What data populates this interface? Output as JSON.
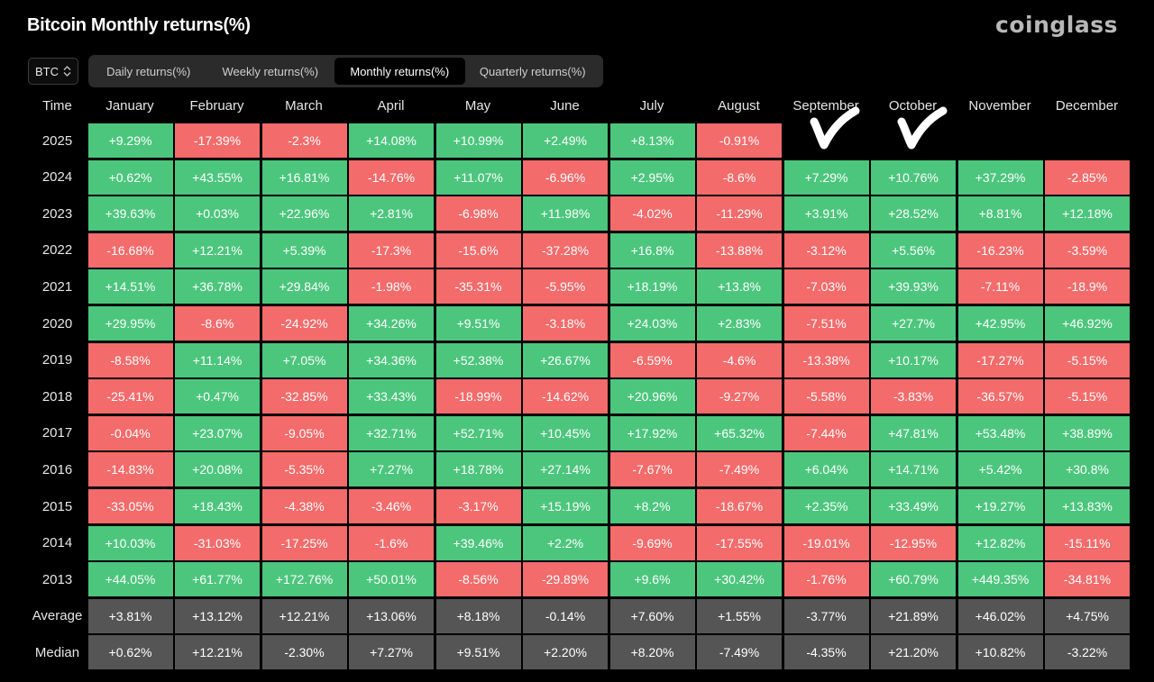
{
  "title": "Bitcoin Monthly returns(%)",
  "logo": "coinglass",
  "asset_select": {
    "value": "BTC"
  },
  "tabs": [
    {
      "label": "Daily returns(%)",
      "active": false
    },
    {
      "label": "Weekly returns(%)",
      "active": false
    },
    {
      "label": "Monthly returns(%)",
      "active": true
    },
    {
      "label": "Quarterly returns(%)",
      "active": false
    }
  ],
  "colors": {
    "positive": "#4cc67d",
    "negative": "#f36b6b",
    "stat": "#555555"
  },
  "chart_data": {
    "type": "table",
    "corner_label": "Time",
    "columns": [
      "January",
      "February",
      "March",
      "April",
      "May",
      "June",
      "July",
      "August",
      "September",
      "October",
      "November",
      "December"
    ],
    "rows": [
      {
        "label": "2025",
        "values": [
          "+9.29%",
          "-17.39%",
          "-2.3%",
          "+14.08%",
          "+10.99%",
          "+2.49%",
          "+8.13%",
          "-0.91%",
          null,
          null,
          null,
          null
        ]
      },
      {
        "label": "2024",
        "values": [
          "+0.62%",
          "+43.55%",
          "+16.81%",
          "-14.76%",
          "+11.07%",
          "-6.96%",
          "+2.95%",
          "-8.6%",
          "+7.29%",
          "+10.76%",
          "+37.29%",
          "-2.85%"
        ]
      },
      {
        "label": "2023",
        "values": [
          "+39.63%",
          "+0.03%",
          "+22.96%",
          "+2.81%",
          "-6.98%",
          "+11.98%",
          "-4.02%",
          "-11.29%",
          "+3.91%",
          "+28.52%",
          "+8.81%",
          "+12.18%"
        ]
      },
      {
        "label": "2022",
        "values": [
          "-16.68%",
          "+12.21%",
          "+5.39%",
          "-17.3%",
          "-15.6%",
          "-37.28%",
          "+16.8%",
          "-13.88%",
          "-3.12%",
          "+5.56%",
          "-16.23%",
          "-3.59%"
        ]
      },
      {
        "label": "2021",
        "values": [
          "+14.51%",
          "+36.78%",
          "+29.84%",
          "-1.98%",
          "-35.31%",
          "-5.95%",
          "+18.19%",
          "+13.8%",
          "-7.03%",
          "+39.93%",
          "-7.11%",
          "-18.9%"
        ]
      },
      {
        "label": "2020",
        "values": [
          "+29.95%",
          "-8.6%",
          "-24.92%",
          "+34.26%",
          "+9.51%",
          "-3.18%",
          "+24.03%",
          "+2.83%",
          "-7.51%",
          "+27.7%",
          "+42.95%",
          "+46.92%"
        ]
      },
      {
        "label": "2019",
        "values": [
          "-8.58%",
          "+11.14%",
          "+7.05%",
          "+34.36%",
          "+52.38%",
          "+26.67%",
          "-6.59%",
          "-4.6%",
          "-13.38%",
          "+10.17%",
          "-17.27%",
          "-5.15%"
        ]
      },
      {
        "label": "2018",
        "values": [
          "-25.41%",
          "+0.47%",
          "-32.85%",
          "+33.43%",
          "-18.99%",
          "-14.62%",
          "+20.96%",
          "-9.27%",
          "-5.58%",
          "-3.83%",
          "-36.57%",
          "-5.15%"
        ]
      },
      {
        "label": "2017",
        "values": [
          "-0.04%",
          "+23.07%",
          "-9.05%",
          "+32.71%",
          "+52.71%",
          "+10.45%",
          "+17.92%",
          "+65.32%",
          "-7.44%",
          "+47.81%",
          "+53.48%",
          "+38.89%"
        ]
      },
      {
        "label": "2016",
        "values": [
          "-14.83%",
          "+20.08%",
          "-5.35%",
          "+7.27%",
          "+18.78%",
          "+27.14%",
          "-7.67%",
          "-7.49%",
          "+6.04%",
          "+14.71%",
          "+5.42%",
          "+30.8%"
        ]
      },
      {
        "label": "2015",
        "values": [
          "-33.05%",
          "+18.43%",
          "-4.38%",
          "-3.46%",
          "-3.17%",
          "+15.19%",
          "+8.2%",
          "-18.67%",
          "+2.35%",
          "+33.49%",
          "+19.27%",
          "+13.83%"
        ]
      },
      {
        "label": "2014",
        "values": [
          "+10.03%",
          "-31.03%",
          "-17.25%",
          "-1.6%",
          "+39.46%",
          "+2.2%",
          "-9.69%",
          "-17.55%",
          "-19.01%",
          "-12.95%",
          "+12.82%",
          "-15.11%"
        ]
      },
      {
        "label": "2013",
        "values": [
          "+44.05%",
          "+61.77%",
          "+172.76%",
          "+50.01%",
          "-8.56%",
          "-29.89%",
          "+9.6%",
          "+30.42%",
          "-1.76%",
          "+60.79%",
          "+449.35%",
          "-34.81%"
        ]
      }
    ],
    "summary_rows": [
      {
        "label": "Average",
        "values": [
          "+3.81%",
          "+13.12%",
          "+12.21%",
          "+13.06%",
          "+8.18%",
          "-0.14%",
          "+7.60%",
          "+1.55%",
          "-3.77%",
          "+21.89%",
          "+46.02%",
          "+4.75%"
        ]
      },
      {
        "label": "Median",
        "values": [
          "+0.62%",
          "+12.21%",
          "-2.30%",
          "+7.27%",
          "+9.51%",
          "+2.20%",
          "+8.20%",
          "-7.49%",
          "-4.35%",
          "+21.20%",
          "+10.82%",
          "-3.22%"
        ]
      }
    ],
    "annotations": [
      {
        "type": "handwritten-checkmark",
        "column": "September",
        "row": "2025"
      },
      {
        "type": "handwritten-checkmark",
        "column": "October",
        "row": "2025"
      }
    ]
  }
}
